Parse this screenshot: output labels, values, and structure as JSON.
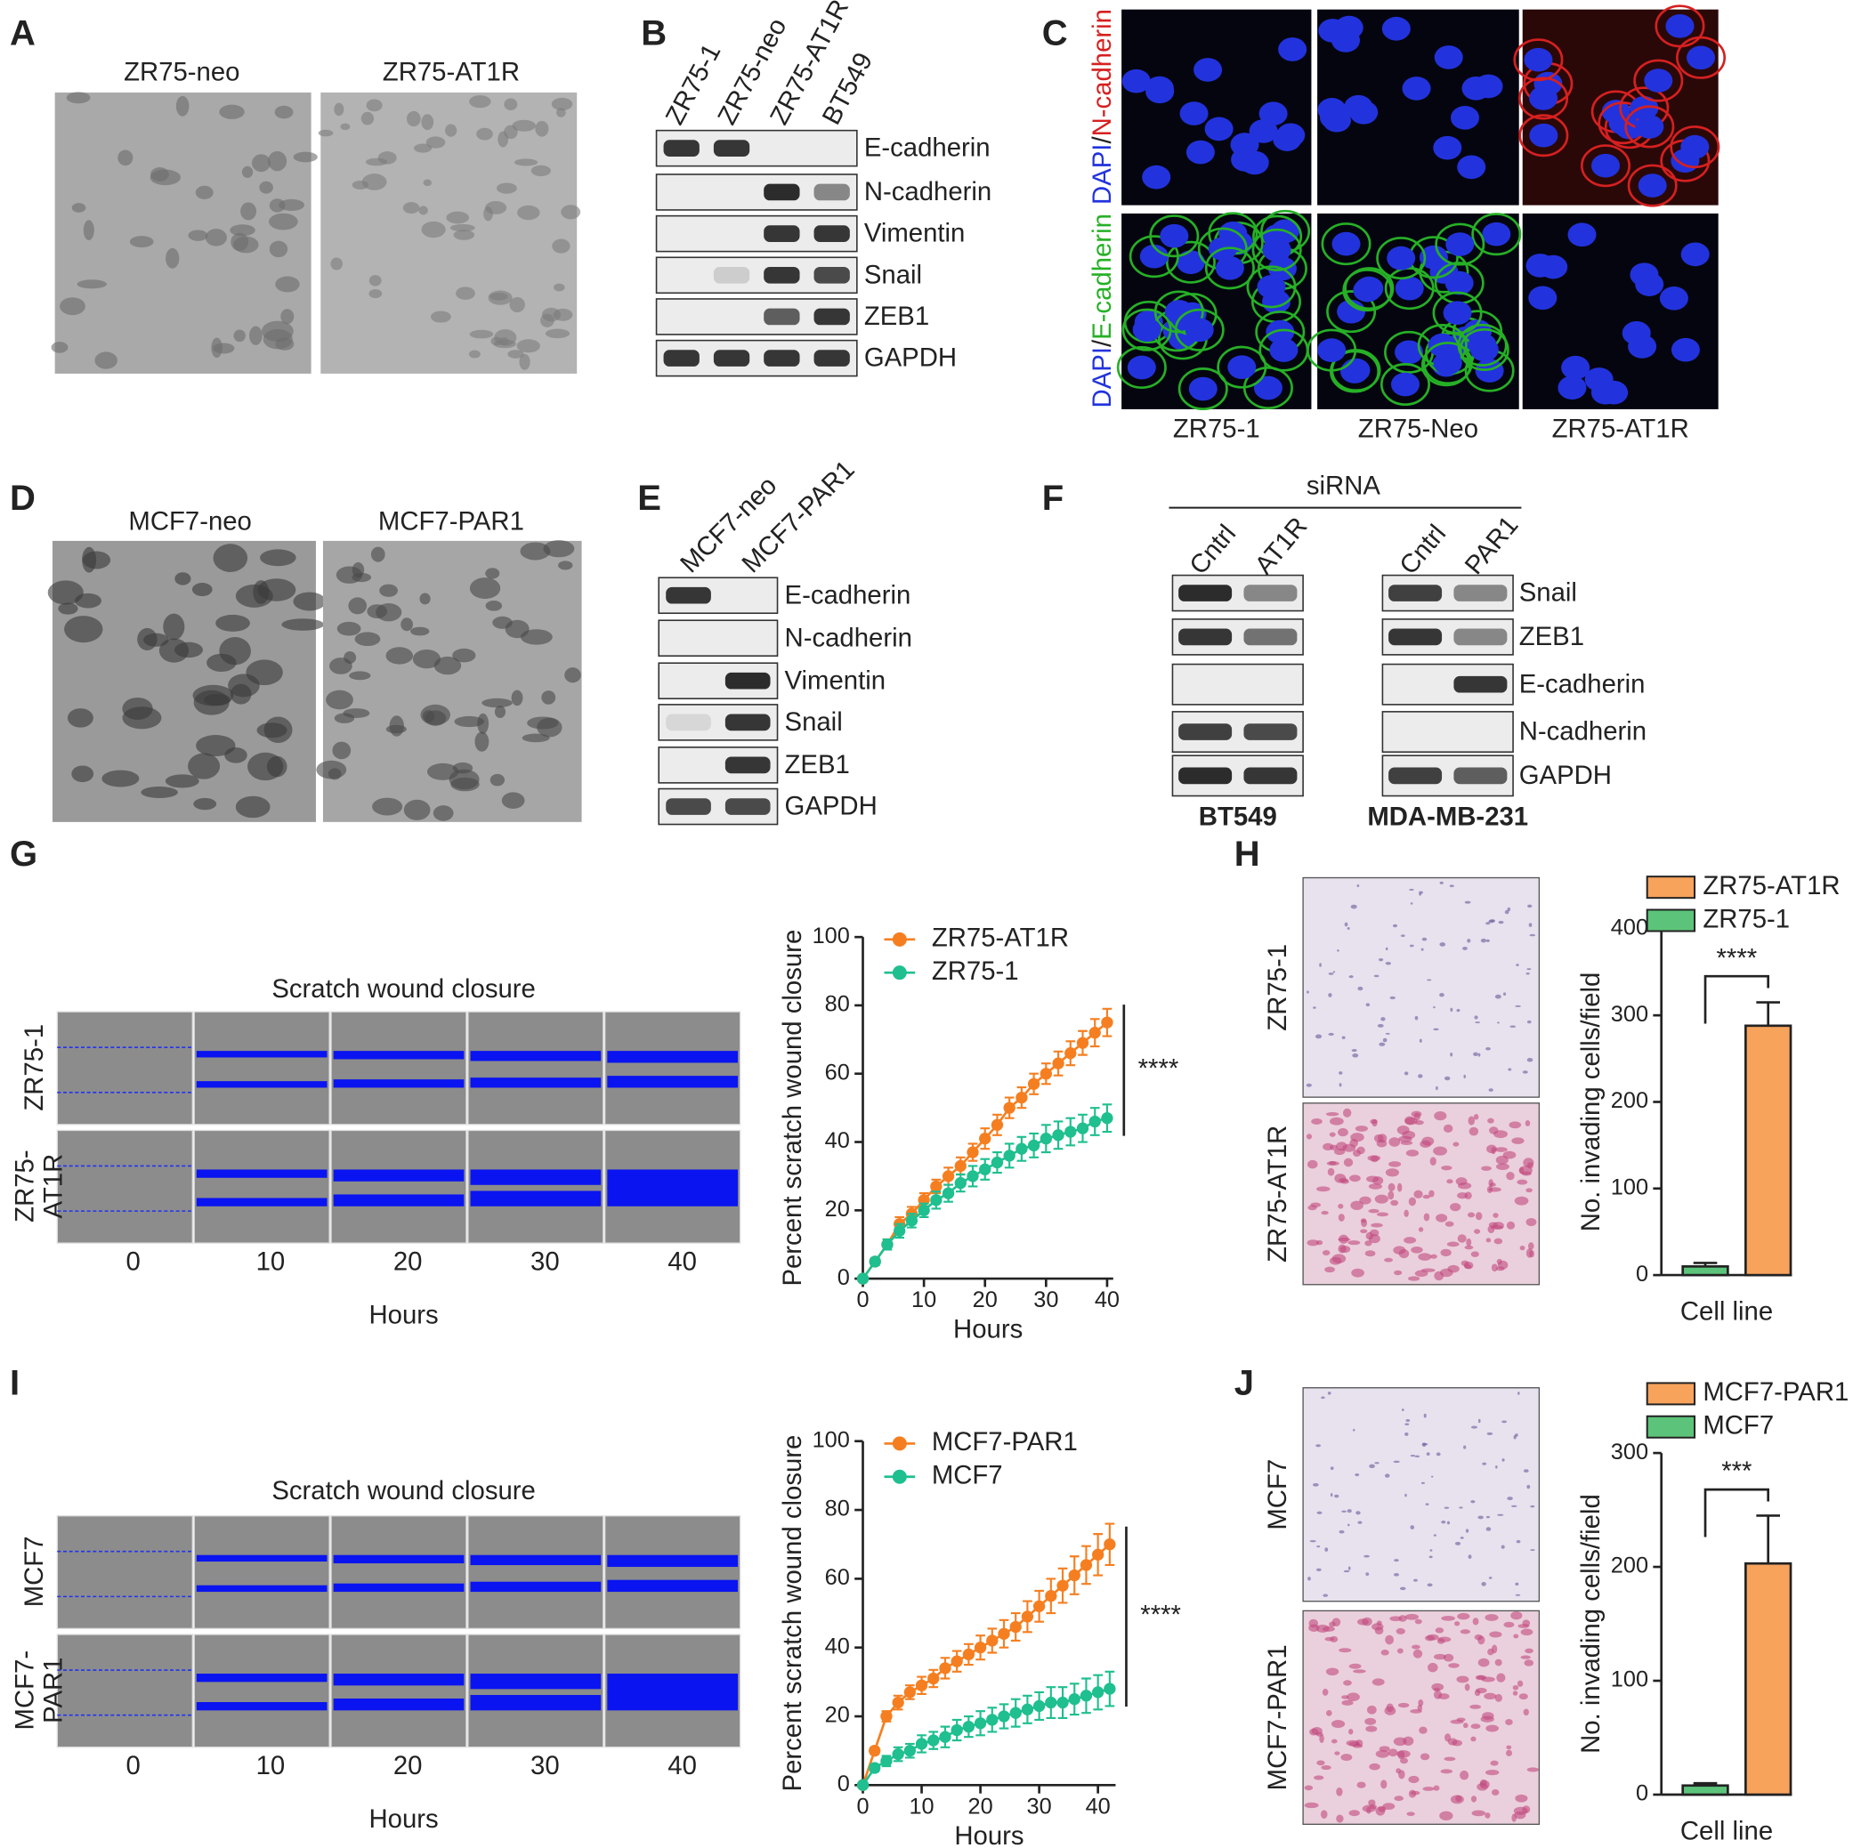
{
  "panel_letters": [
    "A",
    "B",
    "C",
    "D",
    "E",
    "F",
    "G",
    "H",
    "I",
    "J"
  ],
  "panels": {
    "A": {
      "labels": [
        "ZR75-neo",
        "ZR75-AT1R"
      ]
    },
    "B": {
      "lanes": [
        "ZR75-1",
        "ZR75-neo",
        "ZR75-AT1R",
        "BT549"
      ],
      "proteins": [
        "E-cadherin",
        "N-cadherin",
        "Vimentin",
        "Snail",
        "ZEB1",
        "GAPDH"
      ]
    },
    "C": {
      "row_labels": [
        [
          "DAPI",
          "/",
          "N-cadherin"
        ],
        [
          "DAPI",
          "/",
          "E-cadherin"
        ]
      ],
      "columns": [
        "ZR75-1",
        "ZR75-Neo",
        "ZR75-AT1R"
      ]
    },
    "D": {
      "labels": [
        "MCF7-neo",
        "MCF7-PAR1"
      ]
    },
    "E": {
      "lanes": [
        "MCF7-neo",
        "MCF7-PAR1"
      ],
      "proteins": [
        "E-cadherin",
        "N-cadherin",
        "Vimentin",
        "Snail",
        "ZEB1",
        "GAPDH"
      ]
    },
    "F": {
      "header": "siRNA",
      "groups": [
        {
          "lanes": [
            "Cntrl",
            "AT1R"
          ],
          "cell_line": "BT549"
        },
        {
          "lanes": [
            "Cntrl",
            "PAR1"
          ],
          "cell_line": "MDA-MB-231"
        }
      ],
      "proteins": [
        "Snail",
        "ZEB1",
        "E-cadherin",
        "N-cadherin",
        "GAPDH"
      ]
    },
    "G": {
      "title": "Scratch wound closure",
      "row_labels": [
        [
          "ZR75-1"
        ],
        [
          "ZR75-",
          "AT1R"
        ]
      ],
      "times": [
        0,
        10,
        20,
        30,
        40
      ],
      "xlabel": "Hours"
    },
    "H": {
      "row_labels": [
        "ZR75-1",
        "ZR75-AT1R"
      ]
    },
    "I": {
      "title": "Scratch wound closure",
      "row_labels": [
        [
          "MCF7"
        ],
        [
          "MCF7-",
          "PAR1"
        ]
      ],
      "times": [
        0,
        10,
        20,
        30,
        40
      ],
      "xlabel": "Hours"
    },
    "J": {
      "row_labels": [
        "MCF7",
        "MCF7-PAR1"
      ]
    }
  },
  "chart_data": [
    {
      "type": "line",
      "xlabel": "Hours",
      "ylabel": "Percent scratch wound closure",
      "x": [
        0,
        2,
        4,
        6,
        8,
        10,
        12,
        14,
        16,
        18,
        20,
        22,
        24,
        26,
        28,
        30,
        32,
        34,
        36,
        38,
        40
      ],
      "series": [
        {
          "name": "ZR75-AT1R",
          "color": "#f57f20",
          "values": [
            0,
            5,
            10,
            16,
            19,
            23,
            27,
            30,
            33,
            37,
            41,
            45,
            50,
            53,
            57,
            60,
            63,
            66,
            69,
            72,
            75
          ],
          "errors": [
            0.5,
            1,
            1.5,
            2,
            2,
            2,
            2,
            2.5,
            2.5,
            2.5,
            3,
            3,
            3,
            3,
            3,
            3,
            3.5,
            3.5,
            3.5,
            4,
            4
          ]
        },
        {
          "name": "ZR75-1",
          "color": "#1fbf8f",
          "values": [
            0,
            5,
            10,
            14,
            17,
            20,
            23,
            25,
            28,
            30,
            32,
            34,
            36,
            38,
            39,
            41,
            42,
            43,
            44,
            46,
            47
          ],
          "errors": [
            0.5,
            1,
            1.5,
            2,
            2,
            2,
            2.5,
            2.5,
            2.5,
            3,
            3,
            3,
            3.5,
            3.5,
            3.5,
            4,
            4,
            4,
            4,
            4,
            4
          ]
        }
      ],
      "xlim": [
        0,
        41
      ],
      "ylim": [
        0,
        100
      ],
      "xticks": [
        0,
        10,
        20,
        30,
        40
      ],
      "yticks": [
        0,
        20,
        40,
        60,
        80,
        100
      ],
      "legend": "upper left",
      "significance": "****"
    },
    {
      "type": "bar",
      "xlabel": "Cell line",
      "ylabel": "No. invading cells/field",
      "series": [
        {
          "name": "ZR75-AT1R",
          "color": "#f7a35c",
          "values": [
            288
          ],
          "errors": [
            27
          ]
        },
        {
          "name": "ZR75-1",
          "color": "#5cc47a",
          "values": [
            10
          ],
          "errors": [
            4
          ]
        }
      ],
      "ylim": [
        0,
        400
      ],
      "yticks": [
        0,
        100,
        200,
        300,
        400
      ],
      "legend": "upper left",
      "significance": "****"
    },
    {
      "type": "line",
      "xlabel": "Hours",
      "ylabel": "Percent scratch wound closure",
      "x": [
        0,
        2,
        4,
        6,
        8,
        10,
        12,
        14,
        16,
        18,
        20,
        22,
        24,
        26,
        28,
        30,
        32,
        34,
        36,
        38,
        40,
        42
      ],
      "series": [
        {
          "name": "MCF7-PAR1",
          "color": "#f57f20",
          "values": [
            0,
            10,
            20,
            24,
            27,
            29,
            31,
            34,
            36,
            38,
            40,
            42,
            44,
            46,
            49,
            52,
            55,
            58,
            61,
            64,
            67,
            70
          ],
          "errors": [
            0.5,
            1,
            1.5,
            2,
            2,
            2.5,
            2.5,
            3,
            3,
            3,
            3.5,
            3.5,
            4,
            4,
            4.5,
            4.5,
            5,
            5,
            5.5,
            5.5,
            6,
            6
          ]
        },
        {
          "name": "MCF7",
          "color": "#1fbf8f",
          "values": [
            0,
            5,
            7,
            9,
            10,
            12,
            13,
            14,
            16,
            17,
            18,
            19,
            20,
            21,
            22,
            23,
            24,
            24,
            25,
            26,
            27,
            28
          ],
          "errors": [
            0.5,
            1,
            1.5,
            2,
            2,
            2.5,
            2.5,
            3,
            3,
            3,
            3.5,
            3.5,
            3.5,
            4,
            4,
            4,
            4.5,
            4.5,
            4.5,
            5,
            5,
            5
          ]
        }
      ],
      "xlim": [
        0,
        43
      ],
      "ylim": [
        0,
        100
      ],
      "xticks": [
        0,
        10,
        20,
        30,
        40
      ],
      "yticks": [
        0,
        20,
        40,
        60,
        80,
        100
      ],
      "legend": "upper left",
      "significance": "****"
    },
    {
      "type": "bar",
      "xlabel": "Cell line",
      "ylabel": "No. invading cells/field",
      "series": [
        {
          "name": "MCF7-PAR1",
          "color": "#f7a35c",
          "values": [
            203
          ],
          "errors": [
            42
          ]
        },
        {
          "name": "MCF7",
          "color": "#5cc47a",
          "values": [
            8
          ],
          "errors": [
            2
          ]
        }
      ],
      "ylim": [
        0,
        300
      ],
      "yticks": [
        0,
        100,
        200,
        300
      ],
      "legend": "upper left",
      "significance": "***"
    }
  ]
}
